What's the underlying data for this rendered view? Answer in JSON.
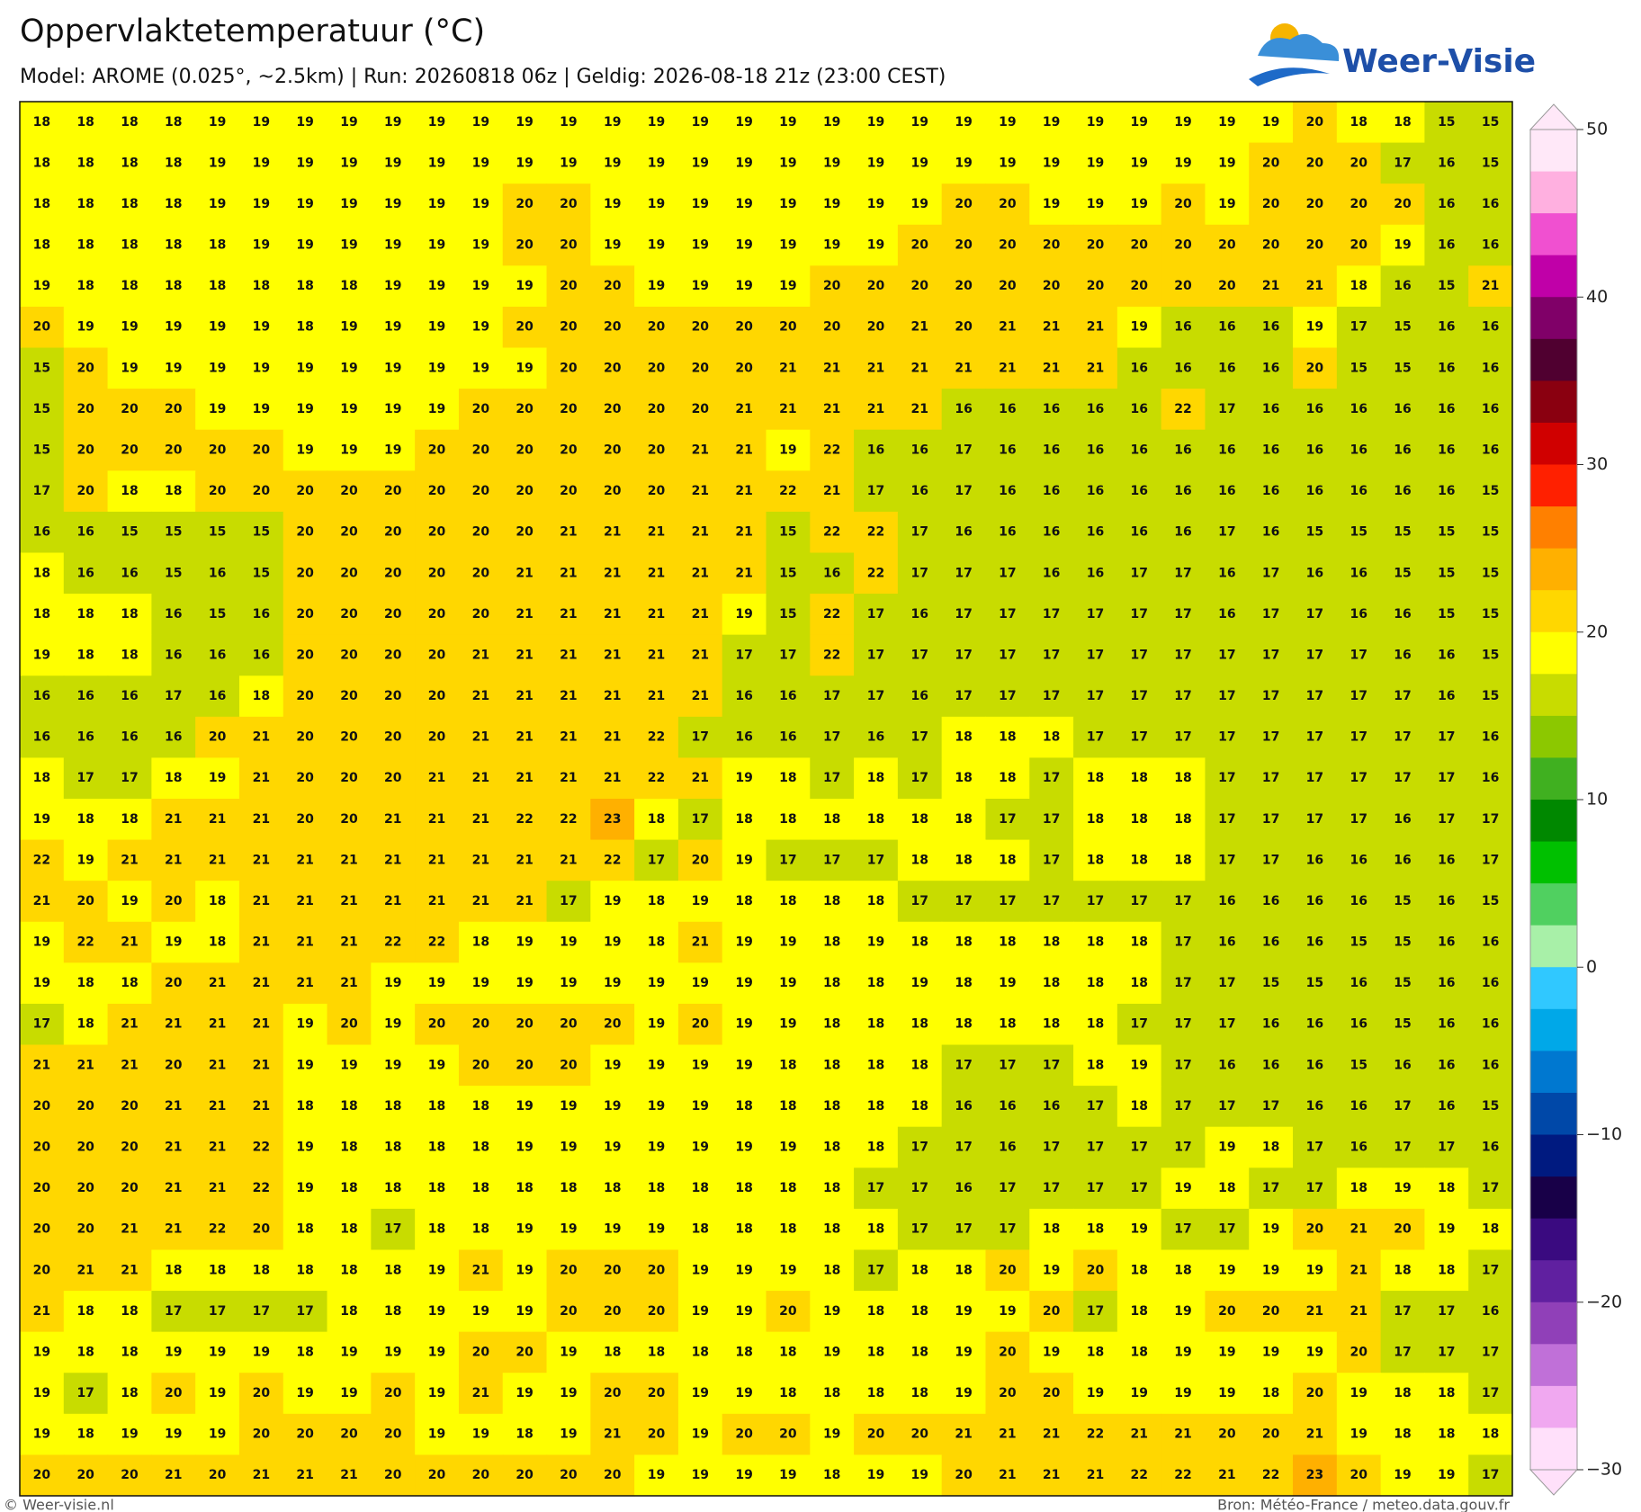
{
  "header": {
    "title": "Oppervlaktetemperatuur (°C)",
    "subtitle": "Model: AROME (0.025°, ~2.5km)  |  Run: 20260818 06z  |  Geldig: 2026-08-18 21z (23:00 CEST)",
    "logo": "Weer-Visie"
  },
  "footer": {
    "left": "© Weer-visie.nl",
    "right": "Bron: Météo-France / meteo.data.gouv.fr"
  },
  "colorbar": {
    "lim": [
      -30,
      50
    ],
    "ticks": [
      50,
      40,
      30,
      20,
      10,
      0,
      {
        "value": -10,
        "label": "−10"
      },
      {
        "value": -20,
        "label": "−20"
      },
      {
        "value": -30,
        "label": "−30"
      }
    ],
    "colors": [
      "#ffe8f8",
      "#ffb0e0",
      "#f050d0",
      "#c000a8",
      "#800068",
      "#500030",
      "#8a0010",
      "#d00000",
      "#ff2000",
      "#ff8000",
      "#ffb000",
      "#ffd700",
      "#ffff00",
      "#c8dc00",
      "#8cc800",
      "#40b020",
      "#008800",
      "#00c000",
      "#50d060",
      "#a8f0a8",
      "#30c8ff",
      "#00a8e8",
      "#0078d0",
      "#0048a8",
      "#001a80",
      "#180048",
      "#3a0a80",
      "#6020a0",
      "#9040b8",
      "#c070d8",
      "#f0a8f0",
      "#ffe0fa"
    ]
  },
  "grid": {
    "rows": [
      [
        18,
        18,
        18,
        18,
        19,
        19,
        19,
        19,
        19,
        19,
        19,
        19,
        19,
        19,
        19,
        19,
        19,
        19,
        19,
        19,
        19,
        19,
        19,
        19,
        19,
        19,
        19,
        19,
        19,
        20,
        18,
        18,
        15,
        15
      ],
      [
        18,
        18,
        18,
        18,
        19,
        19,
        19,
        19,
        19,
        19,
        19,
        19,
        19,
        19,
        19,
        19,
        19,
        19,
        19,
        19,
        19,
        19,
        19,
        19,
        19,
        19,
        19,
        19,
        20,
        20,
        20,
        17,
        16,
        15
      ],
      [
        18,
        18,
        18,
        18,
        19,
        19,
        19,
        19,
        19,
        19,
        19,
        20,
        20,
        19,
        19,
        19,
        19,
        19,
        19,
        19,
        19,
        20,
        20,
        19,
        19,
        19,
        20,
        19,
        20,
        20,
        20,
        20,
        16,
        16
      ],
      [
        18,
        18,
        18,
        18,
        18,
        19,
        19,
        19,
        19,
        19,
        19,
        20,
        20,
        19,
        19,
        19,
        19,
        19,
        19,
        19,
        20,
        20,
        20,
        20,
        20,
        20,
        20,
        20,
        20,
        20,
        20,
        19,
        16,
        16
      ],
      [
        19,
        18,
        18,
        18,
        18,
        18,
        18,
        18,
        19,
        19,
        19,
        19,
        20,
        20,
        19,
        19,
        19,
        19,
        20,
        20,
        20,
        20,
        20,
        20,
        20,
        20,
        20,
        20,
        21,
        21,
        18,
        16,
        15,
        21
      ],
      [
        20,
        19,
        19,
        19,
        19,
        19,
        18,
        19,
        19,
        19,
        19,
        20,
        20,
        20,
        20,
        20,
        20,
        20,
        20,
        20,
        21,
        20,
        21,
        21,
        21,
        19,
        16,
        16,
        16,
        19,
        17,
        15,
        16,
        16
      ],
      [
        15,
        20,
        19,
        19,
        19,
        19,
        19,
        19,
        19,
        19,
        19,
        19,
        20,
        20,
        20,
        20,
        20,
        21,
        21,
        21,
        21,
        21,
        21,
        21,
        21,
        16,
        16,
        16,
        16,
        20,
        15,
        15,
        16,
        16
      ],
      [
        15,
        20,
        20,
        20,
        19,
        19,
        19,
        19,
        19,
        19,
        20,
        20,
        20,
        20,
        20,
        20,
        21,
        21,
        21,
        21,
        21,
        16,
        16,
        16,
        16,
        16,
        22,
        17,
        16,
        16,
        16,
        16,
        16,
        16
      ],
      [
        15,
        20,
        20,
        20,
        20,
        20,
        19,
        19,
        19,
        20,
        20,
        20,
        20,
        20,
        20,
        21,
        21,
        19,
        22,
        16,
        16,
        17,
        16,
        16,
        16,
        16,
        16,
        16,
        16,
        16,
        16,
        16,
        16,
        16
      ],
      [
        17,
        20,
        18,
        18,
        20,
        20,
        20,
        20,
        20,
        20,
        20,
        20,
        20,
        20,
        20,
        21,
        21,
        22,
        21,
        17,
        16,
        17,
        16,
        16,
        16,
        16,
        16,
        16,
        16,
        16,
        16,
        16,
        16,
        15
      ],
      [
        16,
        16,
        15,
        15,
        15,
        15,
        20,
        20,
        20,
        20,
        20,
        20,
        21,
        21,
        21,
        21,
        21,
        15,
        22,
        22,
        17,
        16,
        16,
        16,
        16,
        16,
        16,
        17,
        16,
        15,
        15,
        15,
        15,
        15
      ],
      [
        18,
        16,
        16,
        15,
        16,
        15,
        20,
        20,
        20,
        20,
        20,
        21,
        21,
        21,
        21,
        21,
        21,
        15,
        16,
        22,
        17,
        17,
        17,
        16,
        16,
        17,
        17,
        16,
        17,
        16,
        16,
        15,
        15,
        15
      ],
      [
        18,
        18,
        18,
        16,
        15,
        16,
        20,
        20,
        20,
        20,
        20,
        21,
        21,
        21,
        21,
        21,
        19,
        15,
        22,
        17,
        16,
        17,
        17,
        17,
        17,
        17,
        17,
        16,
        17,
        17,
        16,
        16,
        15,
        15
      ],
      [
        19,
        18,
        18,
        16,
        16,
        16,
        20,
        20,
        20,
        20,
        21,
        21,
        21,
        21,
        21,
        21,
        17,
        17,
        22,
        17,
        17,
        17,
        17,
        17,
        17,
        17,
        17,
        17,
        17,
        17,
        17,
        16,
        16,
        15
      ],
      [
        16,
        16,
        16,
        17,
        16,
        18,
        20,
        20,
        20,
        20,
        21,
        21,
        21,
        21,
        21,
        21,
        16,
        16,
        17,
        17,
        16,
        17,
        17,
        17,
        17,
        17,
        17,
        17,
        17,
        17,
        17,
        17,
        16,
        15
      ],
      [
        16,
        16,
        16,
        16,
        20,
        21,
        20,
        20,
        20,
        20,
        21,
        21,
        21,
        21,
        22,
        17,
        16,
        16,
        17,
        16,
        17,
        18,
        18,
        18,
        17,
        17,
        17,
        17,
        17,
        17,
        17,
        17,
        17,
        16
      ],
      [
        18,
        17,
        17,
        18,
        19,
        21,
        20,
        20,
        20,
        21,
        21,
        21,
        21,
        21,
        22,
        21,
        19,
        18,
        17,
        18,
        17,
        18,
        18,
        17,
        18,
        18,
        18,
        17,
        17,
        17,
        17,
        17,
        17,
        16
      ],
      [
        19,
        18,
        18,
        21,
        21,
        21,
        20,
        20,
        21,
        21,
        21,
        22,
        22,
        23,
        18,
        17,
        18,
        18,
        18,
        18,
        18,
        18,
        17,
        17,
        18,
        18,
        18,
        17,
        17,
        17,
        17,
        16,
        17,
        17
      ],
      [
        22,
        19,
        21,
        21,
        21,
        21,
        21,
        21,
        21,
        21,
        21,
        21,
        21,
        22,
        17,
        20,
        19,
        17,
        17,
        17,
        18,
        18,
        18,
        17,
        18,
        18,
        18,
        17,
        17,
        16,
        16,
        16,
        16,
        17
      ],
      [
        21,
        20,
        19,
        20,
        18,
        21,
        21,
        21,
        21,
        21,
        21,
        21,
        17,
        19,
        18,
        19,
        18,
        18,
        18,
        18,
        17,
        17,
        17,
        17,
        17,
        17,
        17,
        16,
        16,
        16,
        16,
        15,
        16,
        15
      ],
      [
        19,
        22,
        21,
        19,
        18,
        21,
        21,
        21,
        22,
        22,
        18,
        19,
        19,
        19,
        18,
        21,
        19,
        19,
        18,
        19,
        18,
        18,
        18,
        18,
        18,
        18,
        17,
        16,
        16,
        16,
        15,
        15,
        16,
        16
      ],
      [
        19,
        18,
        18,
        20,
        21,
        21,
        21,
        21,
        19,
        19,
        19,
        19,
        19,
        19,
        19,
        19,
        19,
        19,
        18,
        18,
        19,
        18,
        19,
        18,
        18,
        18,
        17,
        17,
        15,
        15,
        16,
        15,
        16,
        16
      ],
      [
        17,
        18,
        21,
        21,
        21,
        21,
        19,
        20,
        19,
        20,
        20,
        20,
        20,
        20,
        19,
        20,
        19,
        19,
        18,
        18,
        18,
        18,
        18,
        18,
        18,
        17,
        17,
        17,
        16,
        16,
        16,
        15,
        16,
        16
      ],
      [
        21,
        21,
        21,
        20,
        21,
        21,
        19,
        19,
        19,
        19,
        20,
        20,
        20,
        19,
        19,
        19,
        19,
        18,
        18,
        18,
        18,
        17,
        17,
        17,
        18,
        19,
        17,
        16,
        16,
        16,
        15,
        16,
        16,
        16
      ],
      [
        20,
        20,
        20,
        21,
        21,
        21,
        18,
        18,
        18,
        18,
        18,
        19,
        19,
        19,
        19,
        19,
        18,
        18,
        18,
        18,
        18,
        16,
        16,
        16,
        17,
        18,
        17,
        17,
        17,
        16,
        16,
        17,
        16,
        15
      ],
      [
        20,
        20,
        20,
        21,
        21,
        22,
        19,
        18,
        18,
        18,
        18,
        19,
        19,
        19,
        19,
        19,
        19,
        19,
        18,
        18,
        17,
        17,
        16,
        17,
        17,
        17,
        17,
        19,
        18,
        17,
        16,
        17,
        17,
        16
      ],
      [
        20,
        20,
        20,
        21,
        21,
        22,
        19,
        18,
        18,
        18,
        18,
        18,
        18,
        18,
        18,
        18,
        18,
        18,
        18,
        17,
        17,
        16,
        17,
        17,
        17,
        17,
        19,
        18,
        17,
        17,
        18,
        19,
        18,
        17
      ],
      [
        20,
        20,
        21,
        21,
        22,
        20,
        18,
        18,
        17,
        18,
        18,
        19,
        19,
        19,
        19,
        18,
        18,
        18,
        18,
        18,
        17,
        17,
        17,
        18,
        18,
        19,
        17,
        17,
        19,
        20,
        21,
        20,
        19,
        18
      ],
      [
        20,
        21,
        21,
        18,
        18,
        18,
        18,
        18,
        18,
        19,
        21,
        19,
        20,
        20,
        20,
        19,
        19,
        19,
        18,
        17,
        18,
        18,
        20,
        19,
        20,
        18,
        18,
        19,
        19,
        19,
        21,
        18,
        18,
        17
      ],
      [
        21,
        18,
        18,
        17,
        17,
        17,
        17,
        18,
        18,
        19,
        19,
        19,
        20,
        20,
        20,
        19,
        19,
        20,
        19,
        18,
        18,
        19,
        19,
        20,
        17,
        18,
        19,
        20,
        20,
        21,
        21,
        17,
        17,
        16
      ],
      [
        19,
        18,
        18,
        19,
        19,
        19,
        18,
        19,
        19,
        19,
        20,
        20,
        19,
        18,
        18,
        18,
        18,
        18,
        19,
        18,
        18,
        19,
        20,
        19,
        18,
        18,
        19,
        19,
        19,
        19,
        20,
        17,
        17,
        17
      ],
      [
        19,
        17,
        18,
        20,
        19,
        20,
        19,
        19,
        20,
        19,
        21,
        19,
        19,
        20,
        20,
        19,
        19,
        18,
        18,
        18,
        18,
        19,
        20,
        20,
        19,
        19,
        19,
        19,
        18,
        20,
        19,
        18,
        18,
        17
      ],
      [
        19,
        18,
        19,
        19,
        19,
        20,
        20,
        20,
        20,
        19,
        19,
        18,
        19,
        21,
        20,
        19,
        20,
        20,
        19,
        20,
        20,
        21,
        21,
        21,
        22,
        21,
        21,
        20,
        20,
        21,
        19,
        18,
        18,
        18
      ],
      [
        20,
        20,
        20,
        21,
        20,
        21,
        21,
        21,
        20,
        20,
        20,
        20,
        20,
        20,
        19,
        19,
        19,
        19,
        18,
        19,
        19,
        20,
        21,
        21,
        21,
        22,
        22,
        21,
        22,
        23,
        20,
        19,
        19,
        17
      ]
    ]
  }
}
